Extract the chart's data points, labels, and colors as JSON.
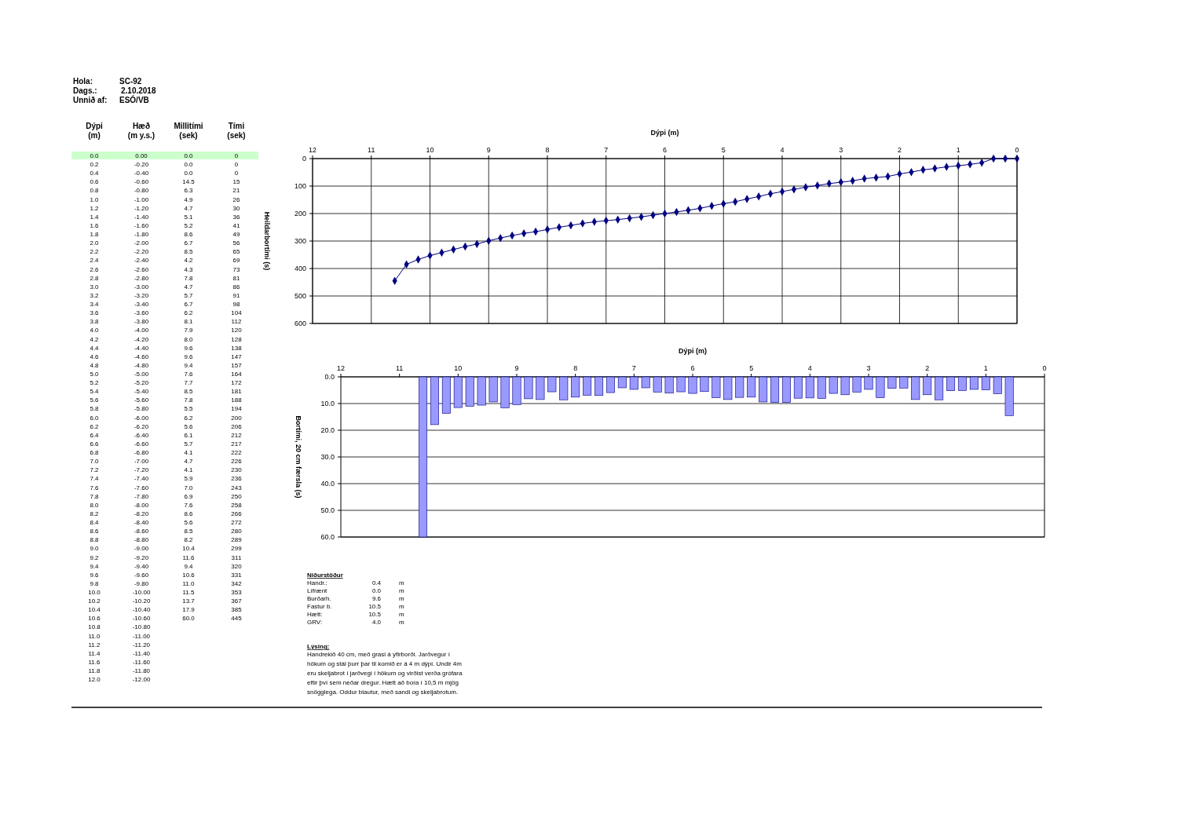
{
  "chart_data": [
    {
      "type": "other",
      "annotations": [
        "Hola:\tSC-92",
        "Dags.:\t2.10.2018",
        "Unnið af:\tESÓ/VB",
        "Niðurstöður",
        "Handr.:\t0.4\tm",
        "Lífrænt\t0.0\tm",
        "Burðarh.\t9.6\tm",
        "Fastur b.\t10.5\tm",
        "Hætt:\t10.5\tm",
        "GRV:\t4.0\tm",
        "Lýsing:",
        "Handrekið 40 cm, með grasi á yfirborði. Jarðvegur í\nhökum og stál þurr þar til komið er á 4 m dýpi. Undir 4m\neru skeljabrot í jarðvegi í hökum og virðist verða grófara\neftir því sem neðar dregur. Hætt að bora í 10,5 m mjög\nsnögglega. Oddur blautur, með sandi og skeljabrotum."
      ],
      "categories": [
        "Dýpi\n(m)",
        "Hæð\n(m y.s.)",
        "Millitími\n(sek)",
        "Tími\n(sek)"
      ],
      "cell_labels": [
        [
          "0.0",
          "0.00",
          "0.0",
          "0"
        ],
        [
          "0.2",
          "-0.20",
          "0.0",
          "0"
        ],
        [
          "0.4",
          "-0.40",
          "0.0",
          "0"
        ],
        [
          "0.6",
          "-0.60",
          "14.5",
          "15"
        ],
        [
          "0.8",
          "-0.80",
          "6.3",
          "21"
        ],
        [
          "1.0",
          "-1.00",
          "4.9",
          "26"
        ],
        [
          "1.2",
          "-1.20",
          "4.7",
          "30"
        ],
        [
          "1.4",
          "-1.40",
          "5.1",
          "36"
        ],
        [
          "1.6",
          "-1.60",
          "5.2",
          "41"
        ],
        [
          "1.8",
          "-1.80",
          "8.6",
          "49"
        ],
        [
          "2.0",
          "-2.00",
          "6.7",
          "56"
        ],
        [
          "2.2",
          "-2.20",
          "8.5",
          "65"
        ],
        [
          "2.4",
          "-2.40",
          "4.2",
          "69"
        ],
        [
          "2.6",
          "-2.60",
          "4.3",
          "73"
        ],
        [
          "2.8",
          "-2.80",
          "7.8",
          "81"
        ],
        [
          "3.0",
          "-3.00",
          "4.7",
          "86"
        ],
        [
          "3.2",
          "-3.20",
          "5.7",
          "91"
        ],
        [
          "3.4",
          "-3.40",
          "6.7",
          "98"
        ],
        [
          "3.6",
          "-3.60",
          "6.2",
          "104"
        ],
        [
          "3.8",
          "-3.80",
          "8.1",
          "112"
        ],
        [
          "4.0",
          "-4.00",
          "7.9",
          "120"
        ],
        [
          "4.2",
          "-4.20",
          "8.0",
          "128"
        ],
        [
          "4.4",
          "-4.40",
          "9.6",
          "138"
        ],
        [
          "4.6",
          "-4.60",
          "9.6",
          "147"
        ],
        [
          "4.8",
          "-4.80",
          "9.4",
          "157"
        ],
        [
          "5.0",
          "-5.00",
          "7.6",
          "164"
        ],
        [
          "5.2",
          "-5.20",
          "7.7",
          "172"
        ],
        [
          "5.4",
          "-5.40",
          "8.5",
          "181"
        ],
        [
          "5.6",
          "-5.60",
          "7.8",
          "188"
        ],
        [
          "5.8",
          "-5.80",
          "5.5",
          "194"
        ],
        [
          "6.0",
          "-6.00",
          "6.2",
          "200"
        ],
        [
          "6.2",
          "-6.20",
          "5.6",
          "206"
        ],
        [
          "6.4",
          "-6.40",
          "6.1",
          "212"
        ],
        [
          "6.6",
          "-6.60",
          "5.7",
          "217"
        ],
        [
          "6.8",
          "-6.80",
          "4.1",
          "222"
        ],
        [
          "7.0",
          "-7.00",
          "4.7",
          "226"
        ],
        [
          "7.2",
          "-7.20",
          "4.1",
          "230"
        ],
        [
          "7.4",
          "-7.40",
          "5.9",
          "236"
        ],
        [
          "7.6",
          "-7.60",
          "7.0",
          "243"
        ],
        [
          "7.8",
          "-7.80",
          "6.9",
          "250"
        ],
        [
          "8.0",
          "-8.00",
          "7.6",
          "258"
        ],
        [
          "8.2",
          "-8.20",
          "8.6",
          "266"
        ],
        [
          "8.4",
          "-8.40",
          "5.6",
          "272"
        ],
        [
          "8.6",
          "-8.60",
          "8.5",
          "280"
        ],
        [
          "8.8",
          "-8.80",
          "8.2",
          "289"
        ],
        [
          "9.0",
          "-9.00",
          "10.4",
          "299"
        ],
        [
          "9.2",
          "-9.20",
          "11.6",
          "311"
        ],
        [
          "9.4",
          "-9.40",
          "9.4",
          "320"
        ],
        [
          "9.6",
          "-9.60",
          "10.6",
          "331"
        ],
        [
          "9.8",
          "-9.80",
          "11.0",
          "342"
        ],
        [
          "10.0",
          "-10.00",
          "11.5",
          "353"
        ],
        [
          "10.2",
          "-10.20",
          "13.7",
          "367"
        ],
        [
          "10.4",
          "-10.40",
          "17.9",
          "385"
        ],
        [
          "10.6",
          "-10.60",
          "60.0",
          "445"
        ],
        [
          "10.8",
          "-10.80",
          null,
          null
        ],
        [
          "11.0",
          "-11.00",
          null,
          null
        ],
        [
          "11.2",
          "-11.20",
          null,
          null
        ],
        [
          "11.4",
          "-11.40",
          null,
          null
        ],
        [
          "11.6",
          "-11.60",
          null,
          null
        ],
        [
          "11.8",
          "-11.80",
          null,
          null
        ],
        [
          "12.0",
          "-12.00",
          null,
          null
        ]
      ]
    },
    {
      "type": "line",
      "xlabel": "Dýpi (m)",
      "ylabel": "Heildarbortími (s)",
      "color": "#000080",
      "marker": "diamond",
      "grid": true,
      "x": [
        0,
        0.2,
        0.4,
        0.6,
        0.8,
        1.0,
        1.2,
        1.4,
        1.6,
        1.8,
        2.0,
        2.2,
        2.4,
        2.6,
        2.8,
        3.0,
        3.2,
        3.4,
        3.6,
        3.8,
        4.0,
        4.2,
        4.4,
        4.6,
        4.8,
        5.0,
        5.2,
        5.4,
        5.6,
        5.8,
        6.0,
        6.2,
        6.4,
        6.6,
        6.8,
        7.0,
        7.2,
        7.4,
        7.6,
        7.8,
        8.0,
        8.2,
        8.4,
        8.6,
        8.8,
        9.0,
        9.2,
        9.4,
        9.6,
        9.8,
        10.0,
        10.2,
        10.4,
        10.6
      ],
      "values": [
        0,
        0,
        0,
        15,
        21,
        26,
        30,
        36,
        41,
        49,
        56,
        65,
        69,
        73,
        81,
        86,
        91,
        98,
        104,
        112,
        120,
        128,
        138,
        147,
        157,
        164,
        172,
        181,
        188,
        194,
        200,
        206,
        212,
        217,
        222,
        226,
        230,
        236,
        243,
        250,
        258,
        266,
        272,
        280,
        289,
        299,
        311,
        320,
        331,
        342,
        353,
        367,
        385,
        445
      ],
      "xlim": [
        12,
        0
      ],
      "xticks": [
        12,
        11,
        10,
        9,
        8,
        7,
        6,
        5,
        4,
        3,
        2,
        1,
        0
      ],
      "ylim": [
        600,
        0
      ],
      "yticks": [
        0,
        100,
        200,
        300,
        400,
        500,
        600
      ]
    },
    {
      "type": "bar",
      "xlabel": "Dýpi (m)",
      "ylabel": "Bortími, 20 cm færsla (s)",
      "color": "#9999ff",
      "grid": "y",
      "x": [
        0.6,
        0.8,
        1.0,
        1.2,
        1.4,
        1.6,
        1.8,
        2.0,
        2.2,
        2.4,
        2.6,
        2.8,
        3.0,
        3.2,
        3.4,
        3.6,
        3.8,
        4.0,
        4.2,
        4.4,
        4.6,
        4.8,
        5.0,
        5.2,
        5.4,
        5.6,
        5.8,
        6.0,
        6.2,
        6.4,
        6.6,
        6.8,
        7.0,
        7.2,
        7.4,
        7.6,
        7.8,
        8.0,
        8.2,
        8.4,
        8.6,
        8.8,
        9.0,
        9.2,
        9.4,
        9.6,
        9.8,
        10.0,
        10.2,
        10.4,
        10.6
      ],
      "values": [
        14.5,
        6.3,
        4.9,
        4.7,
        5.1,
        5.2,
        8.6,
        6.7,
        8.5,
        4.2,
        4.3,
        7.8,
        4.7,
        5.7,
        6.7,
        6.2,
        8.1,
        7.9,
        8.0,
        9.6,
        9.6,
        9.4,
        7.6,
        7.7,
        8.5,
        7.8,
        5.5,
        6.2,
        5.6,
        6.1,
        5.7,
        4.1,
        4.7,
        4.1,
        5.9,
        7.0,
        6.9,
        7.6,
        8.6,
        5.6,
        8.5,
        8.2,
        10.4,
        11.6,
        9.4,
        10.6,
        11.0,
        11.5,
        13.7,
        17.9,
        60.0
      ],
      "xlim": [
        12,
        0
      ],
      "xticks": [
        12,
        11,
        10,
        9,
        8,
        7,
        6,
        5,
        4,
        3,
        2,
        1,
        0
      ],
      "ylim": [
        60,
        0
      ],
      "yticks": [
        {
          "value": 0,
          "label": "0.0"
        },
        {
          "value": 10,
          "label": "10.0"
        },
        {
          "value": 20,
          "label": "20.0"
        },
        {
          "value": 30,
          "label": "30.0"
        },
        {
          "value": 40,
          "label": "40.0"
        },
        {
          "value": 50,
          "label": "50.0"
        },
        {
          "value": 60,
          "label": "60.0"
        }
      ]
    }
  ]
}
